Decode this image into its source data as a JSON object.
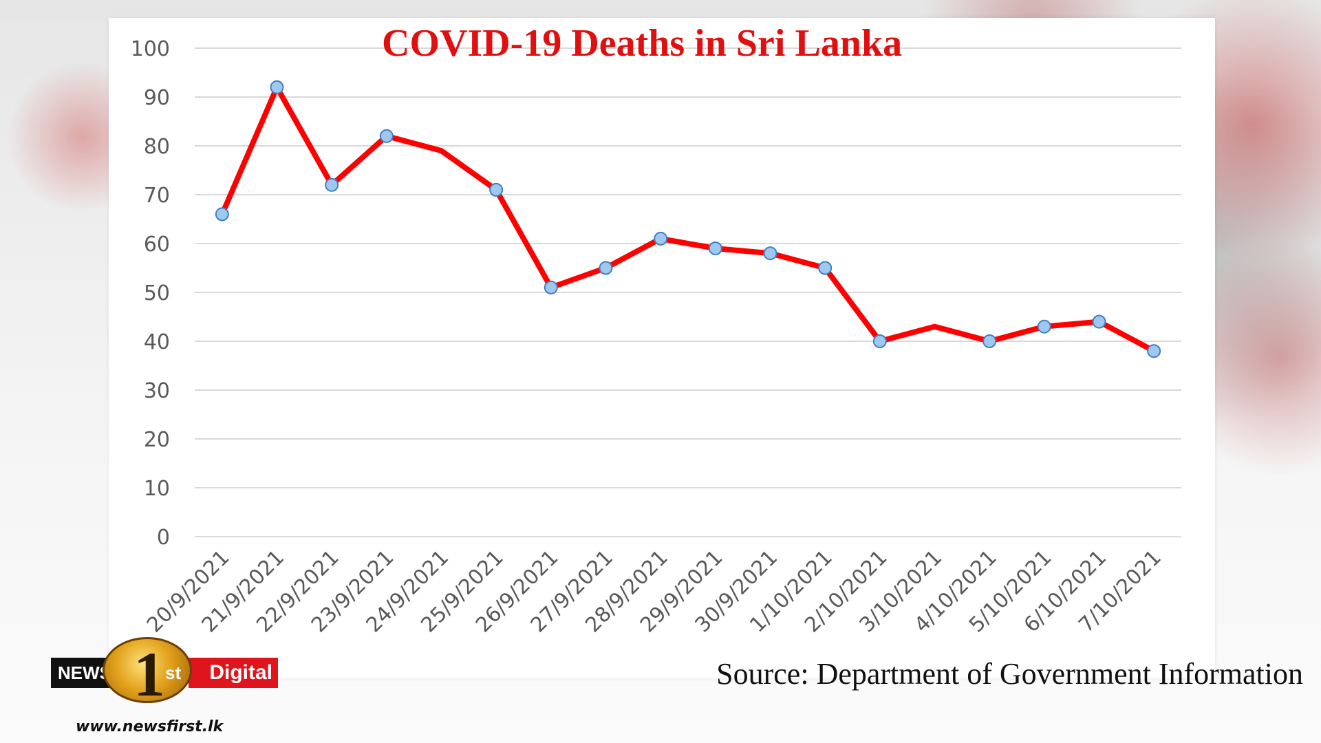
{
  "chart_data": {
    "type": "line",
    "title": "COVID-19 Deaths in Sri Lanka",
    "x": [
      "20/9/2021",
      "21/9/2021",
      "22/9/2021",
      "23/9/2021",
      "24/9/2021",
      "25/9/2021",
      "26/9/2021",
      "27/9/2021",
      "28/9/2021",
      "29/9/2021",
      "30/9/2021",
      "1/10/2021",
      "2/10/2021",
      "3/10/2021",
      "4/10/2021",
      "5/10/2021",
      "6/10/2021",
      "7/10/2021"
    ],
    "series": [
      {
        "values": [
          66,
          92,
          72,
          82,
          79,
          71,
          51,
          55,
          61,
          59,
          58,
          55,
          40,
          43,
          40,
          43,
          44,
          38
        ],
        "line_color": "#ff0000",
        "marker_fill": "#9fc8ee",
        "marker_stroke": "#3f7fc2"
      }
    ],
    "xlabel": "",
    "ylabel": "",
    "ylim": [
      0,
      100
    ],
    "yticks": [
      0,
      10,
      20,
      30,
      40,
      50,
      60,
      70,
      80,
      90,
      100
    ],
    "grid": true,
    "legend": "none"
  },
  "source_text": "Source: Department of Government Information",
  "logo": {
    "news": "NEWS",
    "one": "1",
    "st": "st",
    "digital": "Digital",
    "url": "www.newsfirst.lk"
  }
}
